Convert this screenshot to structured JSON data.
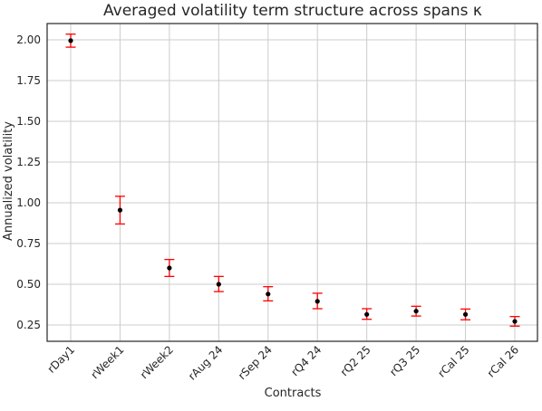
{
  "chart_data": {
    "type": "scatter",
    "title": "Averaged volatility term structure across spans κ",
    "xlabel": "Contracts",
    "ylabel": "Annualized volatility",
    "categories": [
      "rDay1",
      "rWeek1",
      "rWeek2",
      "rAug 24",
      "rSep 24",
      "rQ4 24",
      "rQ2 25",
      "rQ3 25",
      "rCal 25",
      "rCal 26"
    ],
    "values": [
      1.995,
      0.955,
      0.6,
      0.5,
      0.44,
      0.395,
      0.315,
      0.335,
      0.315,
      0.272
    ],
    "error_low": [
      1.955,
      0.87,
      0.548,
      0.455,
      0.398,
      0.35,
      0.285,
      0.305,
      0.282,
      0.243
    ],
    "error_high": [
      2.035,
      1.04,
      0.652,
      0.548,
      0.485,
      0.445,
      0.35,
      0.365,
      0.348,
      0.302
    ],
    "ylim": [
      0.15,
      2.1
    ],
    "yticks": [
      "0.25",
      "0.50",
      "0.75",
      "1.00",
      "1.25",
      "1.50",
      "1.75",
      "2.00"
    ],
    "grid": true,
    "colors": {
      "marker": "#000000",
      "errorbar": "#ff0000",
      "grid": "#cccccc",
      "axes": "#262626"
    }
  }
}
